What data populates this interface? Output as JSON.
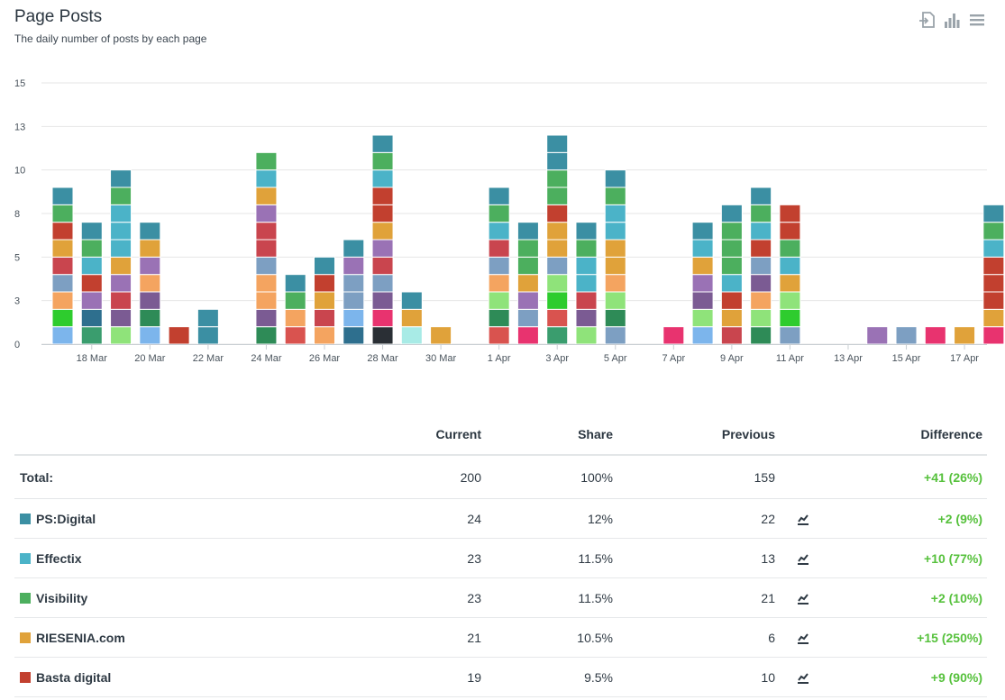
{
  "header": {
    "title": "Page Posts",
    "subtitle": "The daily number of posts by each page"
  },
  "toolbar": {
    "icons": [
      "export-icon",
      "bar-chart-icon",
      "menu-icon"
    ]
  },
  "chart_data": {
    "type": "bar",
    "stacked": true,
    "grid": true,
    "yticks": [
      "0",
      "3",
      "5",
      "8",
      "10",
      "13",
      "15"
    ],
    "ylim": [
      0,
      15
    ],
    "xlabels": [
      "18 Mar",
      "20 Mar",
      "22 Mar",
      "24 Mar",
      "26 Mar",
      "28 Mar",
      "30 Mar",
      "1 Apr",
      "3 Apr",
      "5 Apr",
      "7 Apr",
      "9 Apr",
      "11 Apr",
      "13 Apr",
      "15 Apr",
      "17 Apr"
    ],
    "days": [
      [
        "#7cb5ec",
        "#2ecc2e",
        "#f4a460",
        "#7d9fc2",
        "#c9454e",
        "#e0a23a",
        "#c2402f",
        "#4caf5e",
        "#3b8fa3"
      ],
      [
        "#3a9d6e",
        "#2e6f8e",
        "#9a72b5",
        "#c2402f",
        "#4bb3c8",
        "#4caf5e",
        "#3b8fa3"
      ],
      [
        "#8fe37a",
        "#7b5b93",
        "#c9454e",
        "#9a72b5",
        "#e0a23a",
        "#4bb3c8",
        "#4bb3c8",
        "#4bb3c8",
        "#4caf5e",
        "#3b8fa3"
      ],
      [
        "#7cb5ec",
        "#2e8b57",
        "#7b5b93",
        "#f4a460",
        "#9a72b5",
        "#e0a23a",
        "#3b8fa3"
      ],
      [
        "#c2402f"
      ],
      [
        "#3b8fa3",
        "#3b8fa3"
      ],
      [],
      [
        "#2e8b57",
        "#7b5b93",
        "#f4a460",
        "#f4a460",
        "#7d9fc2",
        "#c9454e",
        "#c9454e",
        "#9a72b5",
        "#e0a23a",
        "#4bb3c8",
        "#4caf5e"
      ],
      [
        "#d9534f",
        "#f4a460",
        "#4caf5e",
        "#3b8fa3"
      ],
      [
        "#f4a460",
        "#c9454e",
        "#e0a23a",
        "#c2402f",
        "#3b8fa3"
      ],
      [
        "#2e6f8e",
        "#7cb5ec",
        "#7d9fc2",
        "#7d9fc2",
        "#9a72b5",
        "#3b8fa3"
      ],
      [
        "#2a2f35",
        "#e8336f",
        "#7b5b93",
        "#7d9fc2",
        "#c9454e",
        "#9a72b5",
        "#e0a23a",
        "#c2402f",
        "#c2402f",
        "#4bb3c8",
        "#4caf5e",
        "#3b8fa3"
      ],
      [
        "#a8ebe6",
        "#e0a23a",
        "#3b8fa3"
      ],
      [
        "#e0a23a"
      ],
      [],
      [
        "#d9534f",
        "#2e8b57",
        "#8fe37a",
        "#f4a460",
        "#7d9fc2",
        "#c9454e",
        "#4bb3c8",
        "#4caf5e",
        "#3b8fa3"
      ],
      [
        "#e8336f",
        "#7d9fc2",
        "#9a72b5",
        "#e0a23a",
        "#4caf5e",
        "#4caf5e",
        "#3b8fa3"
      ],
      [
        "#3a9d6e",
        "#d9534f",
        "#2ecc2e",
        "#8fe37a",
        "#7d9fc2",
        "#e0a23a",
        "#e0a23a",
        "#c2402f",
        "#4caf5e",
        "#4caf5e",
        "#3b8fa3",
        "#3b8fa3"
      ],
      [
        "#8fe37a",
        "#7b5b93",
        "#c9454e",
        "#4bb3c8",
        "#4bb3c8",
        "#4caf5e",
        "#3b8fa3"
      ],
      [
        "#7d9fc2",
        "#2e8b57",
        "#8fe37a",
        "#f4a460",
        "#e0a23a",
        "#e0a23a",
        "#4bb3c8",
        "#4bb3c8",
        "#4caf5e",
        "#3b8fa3"
      ],
      [],
      [
        "#e8336f"
      ],
      [
        "#7cb5ec",
        "#8fe37a",
        "#7b5b93",
        "#9a72b5",
        "#e0a23a",
        "#4bb3c8",
        "#3b8fa3"
      ],
      [
        "#c9454e",
        "#e0a23a",
        "#c2402f",
        "#4bb3c8",
        "#4caf5e",
        "#4caf5e",
        "#4caf5e",
        "#3b8fa3"
      ],
      [
        "#2e8b57",
        "#8fe37a",
        "#f4a460",
        "#7b5b93",
        "#7d9fc2",
        "#c2402f",
        "#4bb3c8",
        "#4caf5e",
        "#3b8fa3"
      ],
      [
        "#7d9fc2",
        "#2ecc2e",
        "#8fe37a",
        "#e0a23a",
        "#4bb3c8",
        "#4caf5e",
        "#c2402f",
        "#c2402f"
      ],
      [],
      [],
      [
        "#9a72b5"
      ],
      [
        "#7d9fc2"
      ],
      [
        "#e8336f"
      ],
      [
        "#e0a23a"
      ],
      [
        "#e8336f",
        "#e0a23a",
        "#c2402f",
        "#c2402f",
        "#c2402f",
        "#4bb3c8",
        "#4caf5e",
        "#3b8fa3"
      ],
      [
        "#2ecc2e",
        "#7d9fc2",
        "#c9454e",
        "#c2402f",
        "#c2402f",
        "#4bb3c8",
        "#4caf5e",
        "#4caf5e",
        "#3b8fa3"
      ],
      [
        "#7cb5ec",
        "#7d9fc2",
        "#8fe37a",
        "#c9454e",
        "#e0a23a",
        "#c2402f",
        "#c2402f",
        "#4bb3c8",
        "#4bb3c8",
        "#4caf5e",
        "#4caf5e",
        "#3b8fa3"
      ],
      []
    ]
  },
  "table": {
    "headers": {
      "current": "Current",
      "share": "Share",
      "previous": "Previous",
      "difference": "Difference"
    },
    "total": {
      "label": "Total:",
      "current": "200",
      "share": "100%",
      "previous": "159",
      "difference": "+41 (26%)"
    },
    "rows": [
      {
        "name": "PS:Digital",
        "color": "#3b8fa3",
        "current": "24",
        "share": "12%",
        "previous": "22",
        "difference": "+2 (9%)"
      },
      {
        "name": "Effectix",
        "color": "#4bb3c8",
        "current": "23",
        "share": "11.5%",
        "previous": "13",
        "difference": "+10 (77%)"
      },
      {
        "name": "Visibility",
        "color": "#4caf5e",
        "current": "23",
        "share": "11.5%",
        "previous": "21",
        "difference": "+2 (10%)"
      },
      {
        "name": "RIESENIA.com",
        "color": "#e0a23a",
        "current": "21",
        "share": "10.5%",
        "previous": "6",
        "difference": "+15 (250%)"
      },
      {
        "name": "Basta digital",
        "color": "#c2402f",
        "current": "19",
        "share": "9.5%",
        "previous": "10",
        "difference": "+9 (90%)"
      }
    ]
  }
}
